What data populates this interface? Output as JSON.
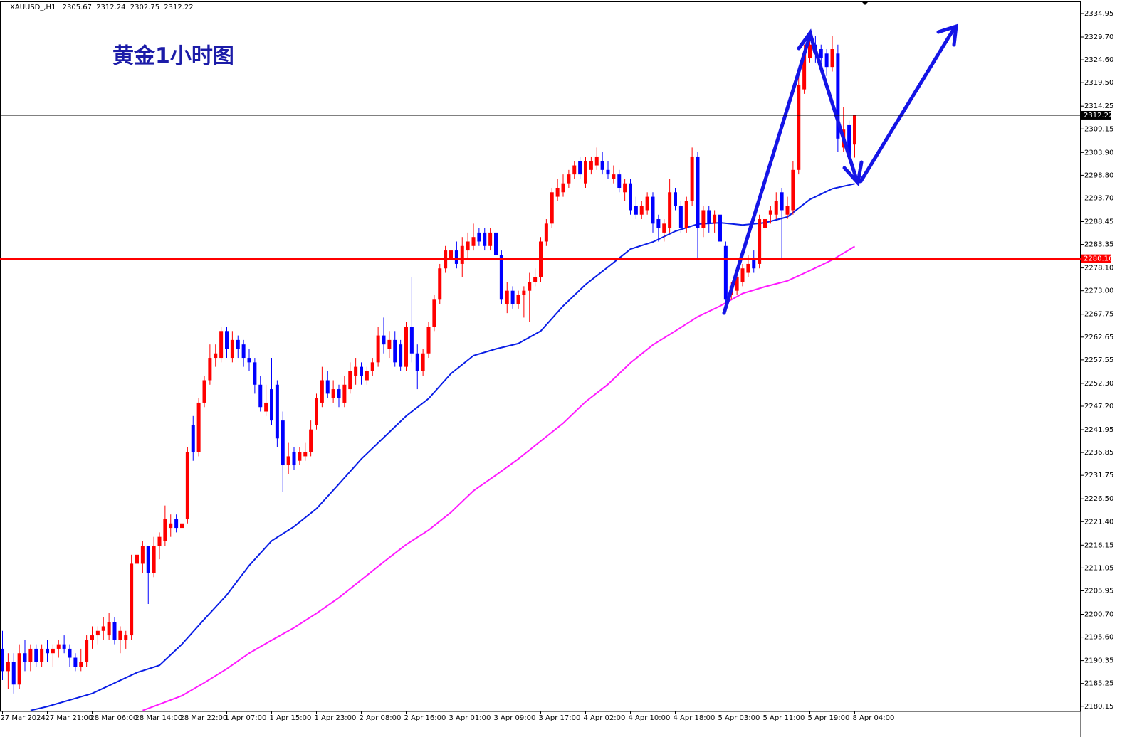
{
  "chart_data": {
    "type": "candlestick",
    "symbol": "XAUUSD_,H1",
    "header_ohlc": [
      2305.67,
      2312.24,
      2302.75,
      2312.22
    ],
    "annotation": "黄金1小时图",
    "up_color": "#ff0000",
    "down_color": "#0000ff",
    "categories": [
      "27 Mar 2024",
      null,
      null,
      null,
      null,
      null,
      null,
      null,
      "27 Mar 21:00",
      null,
      null,
      null,
      null,
      null,
      null,
      null,
      "28 Mar 06:00",
      null,
      null,
      null,
      null,
      null,
      null,
      null,
      "28 Mar 14:00",
      null,
      null,
      null,
      null,
      null,
      null,
      null,
      "28 Mar 22:00",
      null,
      null,
      null,
      null,
      null,
      null,
      null,
      "1 Apr 07:00",
      null,
      null,
      null,
      null,
      null,
      null,
      null,
      "1 Apr 15:00",
      null,
      null,
      null,
      null,
      null,
      null,
      null,
      "1 Apr 23:00",
      null,
      null,
      null,
      null,
      null,
      null,
      null,
      "2 Apr 08:00",
      null,
      null,
      null,
      null,
      null,
      null,
      null,
      "2 Apr 16:00",
      null,
      null,
      null,
      null,
      null,
      null,
      null,
      "3 Apr 01:00",
      null,
      null,
      null,
      null,
      null,
      null,
      null,
      "3 Apr 09:00",
      null,
      null,
      null,
      null,
      null,
      null,
      null,
      "3 Apr 17:00",
      null,
      null,
      null,
      null,
      null,
      null,
      null,
      "4 Apr 02:00",
      null,
      null,
      null,
      null,
      null,
      null,
      null,
      "4 Apr 10:00",
      null,
      null,
      null,
      null,
      null,
      null,
      null,
      "4 Apr 18:00",
      null,
      null,
      null,
      null,
      null,
      null,
      null,
      "5 Apr 03:00",
      null,
      null,
      null,
      null,
      null,
      null,
      null,
      "5 Apr 11:00",
      null,
      null,
      null,
      null,
      null,
      null,
      null,
      "5 Apr 19:00",
      null,
      null,
      null,
      null,
      null,
      null,
      null,
      "8 Apr 04:00"
    ],
    "ohlc": [
      [
        2193,
        2197,
        2186,
        2188
      ],
      [
        2188,
        2192,
        2184,
        2190
      ],
      [
        2190,
        2192,
        2183,
        2185
      ],
      [
        2185,
        2194,
        2184,
        2192
      ],
      [
        2192,
        2195,
        2188,
        2190
      ],
      [
        2190,
        2194,
        2188,
        2193
      ],
      [
        2193,
        2194,
        2189,
        2190
      ],
      [
        2190,
        2194,
        2189,
        2193
      ],
      [
        2193,
        2195,
        2190,
        2192
      ],
      [
        2192,
        2194,
        2189,
        2193
      ],
      [
        2193,
        2195,
        2191,
        2194
      ],
      [
        2194,
        2196,
        2192,
        2193
      ],
      [
        2193,
        2194,
        2189,
        2191
      ],
      [
        2191,
        2192,
        2188,
        2189
      ],
      [
        2189,
        2193,
        2188,
        2190
      ],
      [
        2190,
        2196,
        2189,
        2195
      ],
      [
        2195,
        2198,
        2193,
        2196
      ],
      [
        2196,
        2198,
        2194,
        2197
      ],
      [
        2197,
        2200,
        2195,
        2198
      ],
      [
        2196,
        2201,
        2195,
        2199
      ],
      [
        2199,
        2200,
        2194,
        2195
      ],
      [
        2195,
        2198,
        2192,
        2197
      ],
      [
        2195,
        2197,
        2193,
        2196
      ],
      [
        2196,
        2214,
        2195,
        2212
      ],
      [
        2212,
        2216,
        2209,
        2214
      ],
      [
        2212,
        2217,
        2210,
        2216
      ],
      [
        2216,
        2216,
        2203,
        2210
      ],
      [
        2210,
        2218,
        2209,
        2216
      ],
      [
        2216,
        2219,
        2213,
        2218
      ],
      [
        2217,
        2225,
        2216,
        2222
      ],
      [
        2220,
        2223,
        2218,
        2221
      ],
      [
        2222,
        2223,
        2219,
        2220
      ],
      [
        2220,
        2223,
        2218,
        2221
      ],
      [
        2222,
        2238,
        2221,
        2237
      ],
      [
        2243,
        2245,
        2235,
        2237
      ],
      [
        2237,
        2249,
        2236,
        2248
      ],
      [
        2248,
        2254,
        2247,
        2253
      ],
      [
        2253,
        2261,
        2252,
        2258
      ],
      [
        2258,
        2261,
        2256,
        2259
      ],
      [
        2258,
        2265,
        2257,
        2264
      ],
      [
        2264,
        2265,
        2258,
        2260
      ],
      [
        2258,
        2264,
        2257,
        2262
      ],
      [
        2262,
        2263,
        2258,
        2260
      ],
      [
        2261,
        2262,
        2256,
        2258
      ],
      [
        2258,
        2260,
        2255,
        2257
      ],
      [
        2257,
        2258,
        2250,
        2252
      ],
      [
        2252,
        2254,
        2246,
        2247
      ],
      [
        2246,
        2252,
        2245,
        2248
      ],
      [
        2251,
        2258,
        2243,
        2244
      ],
      [
        2252,
        2253,
        2238,
        2240
      ],
      [
        2244,
        2246,
        2228,
        2234
      ],
      [
        2234,
        2239,
        2232,
        2236
      ],
      [
        2237,
        2238,
        2233,
        2234
      ],
      [
        2235,
        2238,
        2234,
        2237
      ],
      [
        2236,
        2239,
        2235,
        2237
      ],
      [
        2237,
        2244,
        2236,
        2242
      ],
      [
        2243,
        2250,
        2242,
        2249
      ],
      [
        2248,
        2256,
        2247,
        2253
      ],
      [
        2253,
        2255,
        2249,
        2250
      ],
      [
        2249,
        2253,
        2248,
        2251
      ],
      [
        2251,
        2252,
        2247,
        2249
      ],
      [
        2248,
        2254,
        2247,
        2252
      ],
      [
        2251,
        2257,
        2250,
        2255
      ],
      [
        2254,
        2258,
        2252,
        2256
      ],
      [
        2256,
        2257,
        2252,
        2254
      ],
      [
        2253,
        2256,
        2252,
        2255
      ],
      [
        2255,
        2258,
        2254,
        2257
      ],
      [
        2257,
        2265,
        2256,
        2263
      ],
      [
        2263,
        2267,
        2259,
        2261
      ],
      [
        2260,
        2264,
        2258,
        2262
      ],
      [
        2262,
        2264,
        2256,
        2257
      ],
      [
        2261,
        2262,
        2255,
        2256
      ],
      [
        2256,
        2266,
        2255,
        2265
      ],
      [
        2265,
        2276,
        2257,
        2259
      ],
      [
        2259,
        2261,
        2251,
        2255
      ],
      [
        2255,
        2260,
        2254,
        2259
      ],
      [
        2259,
        2266,
        2258,
        2265
      ],
      [
        2265,
        2272,
        2264,
        2271
      ],
      [
        2271,
        2279,
        2270,
        2278
      ],
      [
        2278,
        2283,
        2277,
        2282
      ],
      [
        2280,
        2288,
        2279,
        2282
      ],
      [
        2282,
        2284,
        2278,
        2279
      ],
      [
        2279,
        2285,
        2276,
        2283
      ],
      [
        2282,
        2286,
        2280,
        2284
      ],
      [
        2283,
        2288,
        2282,
        2285
      ],
      [
        2286,
        2287,
        2283,
        2284
      ],
      [
        2286,
        2287,
        2282,
        2283
      ],
      [
        2283,
        2287,
        2282,
        2286
      ],
      [
        2286,
        2287,
        2280,
        2281
      ],
      [
        2281,
        2282,
        2270,
        2271
      ],
      [
        2270,
        2275,
        2268,
        2273
      ],
      [
        2273,
        2274,
        2269,
        2270
      ],
      [
        2270,
        2273,
        2269,
        2272
      ],
      [
        2272,
        2274,
        2267,
        2273
      ],
      [
        2273,
        2277,
        2266,
        2275
      ],
      [
        2275,
        2278,
        2274,
        2276
      ],
      [
        2276,
        2285,
        2275,
        2284
      ],
      [
        2284,
        2289,
        2283,
        2288
      ],
      [
        2288,
        2296,
        2287,
        2295
      ],
      [
        2294,
        2298,
        2293,
        2296
      ],
      [
        2295,
        2299,
        2294,
        2297
      ],
      [
        2297,
        2300,
        2296,
        2299
      ],
      [
        2299,
        2302,
        2298,
        2301
      ],
      [
        2302,
        2303,
        2298,
        2299
      ],
      [
        2297,
        2303,
        2296,
        2302
      ],
      [
        2300,
        2303,
        2299,
        2302
      ],
      [
        2301,
        2305,
        2300,
        2303
      ],
      [
        2302,
        2304,
        2299,
        2300
      ],
      [
        2300,
        2302,
        2298,
        2299
      ],
      [
        2298,
        2301,
        2297,
        2299
      ],
      [
        2299,
        2300,
        2295,
        2296
      ],
      [
        2295,
        2298,
        2293,
        2297
      ],
      [
        2297,
        2298,
        2290,
        2291
      ],
      [
        2292,
        2294,
        2289,
        2290
      ],
      [
        2290,
        2293,
        2289,
        2292
      ],
      [
        2291,
        2295,
        2290,
        2294
      ],
      [
        2294,
        2295,
        2286,
        2288
      ],
      [
        2289,
        2290,
        2284,
        2287
      ],
      [
        2286,
        2289,
        2284,
        2288
      ],
      [
        2287,
        2298,
        2286,
        2295
      ],
      [
        2295,
        2296,
        2291,
        2292
      ],
      [
        2292,
        2293,
        2286,
        2287
      ],
      [
        2287,
        2294,
        2286,
        2293
      ],
      [
        2293,
        2305,
        2292,
        2303
      ],
      [
        2303,
        2304,
        2280,
        2287
      ],
      [
        2287,
        2292,
        2285,
        2291
      ],
      [
        2291,
        2292,
        2286,
        2288
      ],
      [
        2288,
        2291,
        2286,
        2290
      ],
      [
        2290,
        2291,
        2283,
        2284
      ],
      [
        2283,
        2284,
        2270,
        2271
      ],
      [
        2272,
        2275,
        2271,
        2274
      ],
      [
        2273,
        2277,
        2272,
        2276
      ],
      [
        2275,
        2279,
        2274,
        2278
      ],
      [
        2277,
        2281,
        2276,
        2279
      ],
      [
        2280,
        2282,
        2277,
        2278
      ],
      [
        2279,
        2290,
        2278,
        2289
      ],
      [
        2287,
        2291,
        2286,
        2289
      ],
      [
        2290,
        2292,
        2288,
        2291
      ],
      [
        2290,
        2295,
        2289,
        2293
      ],
      [
        2295,
        2296,
        2280,
        2291
      ],
      [
        2290,
        2294,
        2289,
        2292
      ],
      [
        2291,
        2302,
        2290,
        2300
      ],
      [
        2300,
        2321,
        2299,
        2319
      ],
      [
        2318,
        2328,
        2317,
        2326
      ],
      [
        2325,
        2331,
        2324,
        2328
      ],
      [
        2328,
        2330,
        2324,
        2326
      ],
      [
        2327,
        2328,
        2323,
        2325
      ],
      [
        2326,
        2327,
        2321,
        2323
      ],
      [
        2323,
        2330,
        2322,
        2327
      ],
      [
        2326,
        2328,
        2304,
        2307
      ],
      [
        2305,
        2314,
        2304,
        2309
      ],
      [
        2310,
        2311,
        2302,
        2303
      ],
      [
        2305.67,
        2312.24,
        2302.75,
        2312.22
      ]
    ],
    "lines": [
      {
        "color": "#0a1ee6",
        "x": [
          5,
          8,
          16,
          24,
          28,
          32,
          36,
          40,
          44,
          48,
          52,
          56,
          60,
          64,
          68,
          72,
          76,
          80,
          84,
          88,
          92,
          96,
          100,
          104,
          108,
          112,
          116,
          120,
          124,
          128,
          132,
          136,
          140,
          144,
          148,
          152
        ],
        "values": [
          2179.2,
          2180.1,
          2183,
          2187.7,
          2189.3,
          2194,
          2199.6,
          2205,
          2211.6,
          2217.1,
          2220.3,
          2224.3,
          2229.8,
          2235.4,
          2240.2,
          2245,
          2248.9,
          2254.5,
          2258.5,
          2260,
          2261.2,
          2264,
          2269.6,
          2274.4,
          2278.3,
          2282.3,
          2283.9,
          2286.3,
          2287.9,
          2288.2,
          2287.7,
          2288.2,
          2289.5,
          2293.4,
          2295.8,
          2296.9
        ]
      },
      {
        "color": "#ff1aff",
        "x": [
          25,
          28,
          32,
          36,
          40,
          44,
          48,
          52,
          56,
          60,
          64,
          68,
          72,
          76,
          80,
          84,
          88,
          92,
          96,
          100,
          104,
          108,
          112,
          116,
          120,
          124,
          128,
          132,
          136,
          140,
          144,
          148,
          152
        ],
        "values": [
          2179.2,
          2180.6,
          2182.5,
          2185.4,
          2188.5,
          2192,
          2194.9,
          2197.7,
          2200.9,
          2204.4,
          2208.4,
          2212.4,
          2216.3,
          2219.5,
          2223.5,
          2228.3,
          2231.8,
          2235.4,
          2239.4,
          2243.4,
          2248.2,
          2252.1,
          2256.9,
          2260.9,
          2264,
          2267.2,
          2269.6,
          2272.4,
          2273.9,
          2275.2,
          2277.5,
          2279.9,
          2282.9
        ]
      }
    ],
    "hlines": [
      {
        "value": 2312.22,
        "color": "#000000"
      },
      {
        "value": 2280.16,
        "color": "#ff0000"
      }
    ],
    "ylim": [
      2179.0,
      2337.65
    ],
    "yticks": [
      2334.95,
      {
        "value": 2329.7,
        "label": "2329.70"
      },
      {
        "value": 2324.6,
        "label": "2324.60"
      },
      {
        "value": 2319.5,
        "label": "2319.50"
      },
      2314.25,
      2309.15,
      {
        "value": 2303.9,
        "label": "2303.90"
      },
      {
        "value": 2298.8,
        "label": "2298.80"
      },
      {
        "value": 2293.7,
        "label": "2293.70"
      },
      2288.45,
      2283.35,
      {
        "value": 2278.1,
        "label": "2278.10"
      },
      {
        "value": 2273,
        "label": "2273.00"
      },
      2267.75,
      2262.65,
      2257.55,
      {
        "value": 2252.3,
        "label": "2252.30"
      },
      {
        "value": 2247.2,
        "label": "2247.20"
      },
      2241.95,
      2236.85,
      2231.75,
      {
        "value": 2226.5,
        "label": "2226.50"
      },
      {
        "value": 2221.4,
        "label": "2221.40"
      },
      2216.15,
      2211.05,
      2205.95,
      {
        "value": 2200.7,
        "label": "2200.70"
      },
      {
        "value": 2195.6,
        "label": "2195.60"
      },
      2190.35,
      2185.25,
      2180.15
    ]
  }
}
